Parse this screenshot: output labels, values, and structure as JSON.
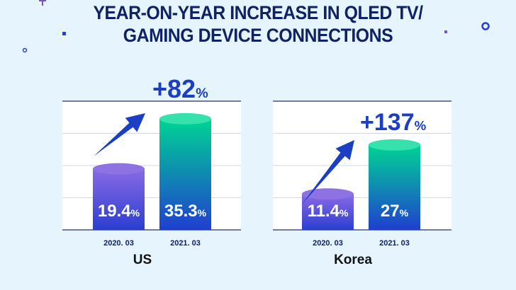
{
  "title_lines": [
    "YEAR-ON-YEAR INCREASE IN QLED TV/",
    "GAMING DEVICE CONNECTIONS"
  ],
  "chart_data": [
    {
      "type": "bar",
      "title": "US",
      "categories": [
        "2020. 03",
        "2021. 03"
      ],
      "values": [
        19.4,
        35.3
      ],
      "value_labels": [
        "19.4",
        "35.3"
      ],
      "unit": "%",
      "increase_label": "+82",
      "ylim": [
        0,
        40
      ],
      "grid": true
    },
    {
      "type": "bar",
      "title": "Korea",
      "categories": [
        "2020. 03",
        "2021. 03"
      ],
      "values": [
        11.4,
        27
      ],
      "value_labels": [
        "11.4",
        "27"
      ],
      "unit": "%",
      "increase_label": "+137",
      "ylim": [
        0,
        40
      ],
      "grid": true
    }
  ],
  "colors": {
    "title": "#0f2266",
    "increase": "#1a3fc4",
    "bar_old_top": "#8a6ae6",
    "bar_old_bottom": "#2a3fcf",
    "bar_new_top": "#00d494",
    "bar_new_bottom": "#1f3fcf",
    "arrow": "#1a3fc4",
    "background": "#e6f4fd"
  }
}
